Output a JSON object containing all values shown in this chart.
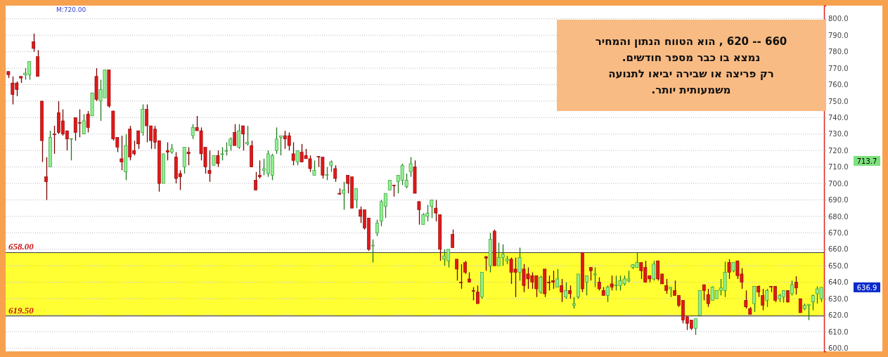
{
  "chart_data": {
    "type": "candlestick",
    "categories": [
      null,
      null,
      null,
      null,
      null,
      null,
      null,
      null,
      null,
      null,
      null,
      null,
      null,
      null,
      null,
      null,
      null,
      null,
      null,
      null,
      null,
      null,
      null,
      null,
      null,
      null,
      null,
      null,
      null,
      null,
      null,
      null,
      null,
      null,
      null,
      null,
      null,
      null,
      null,
      null,
      null,
      null,
      null,
      null,
      null,
      null,
      null,
      null,
      null,
      null,
      null,
      null,
      null,
      null,
      null,
      null,
      null,
      null,
      null,
      null,
      null,
      null,
      null,
      null,
      null,
      null,
      null,
      null,
      null,
      null,
      null,
      null,
      null,
      null,
      null,
      null,
      null,
      null,
      null,
      null,
      null,
      null,
      null,
      null,
      null,
      null,
      null,
      null,
      null,
      null,
      null,
      null,
      null,
      null,
      null,
      null,
      null,
      null,
      null,
      null,
      null,
      null,
      null,
      null,
      null,
      null,
      null,
      null,
      null,
      null,
      null,
      null,
      null,
      null,
      null,
      null,
      null,
      null,
      null,
      null,
      null,
      null,
      null,
      null,
      null,
      null,
      null,
      null,
      null,
      null,
      null,
      null,
      null,
      null,
      null,
      null,
      null,
      null,
      null,
      null,
      null,
      null,
      null,
      null,
      null,
      null,
      null,
      null,
      null,
      null,
      null,
      null,
      null,
      null,
      null,
      null,
      null,
      null,
      null,
      null,
      null,
      null,
      null,
      null,
      null,
      null,
      null,
      null,
      null,
      null,
      null,
      null,
      null,
      null,
      null,
      null,
      null,
      null,
      null,
      null,
      null,
      null,
      null,
      null,
      null,
      null,
      null,
      null,
      null,
      null,
      null,
      null,
      null,
      null,
      null
    ],
    "ohlc": [
      [
        768,
        768,
        764,
        766
      ],
      [
        761,
        765,
        748,
        754
      ],
      [
        761,
        762,
        753,
        757
      ],
      [
        765,
        765,
        761,
        764
      ],
      [
        766,
        770,
        763,
        767
      ],
      [
        766,
        774,
        763,
        774
      ],
      [
        786,
        791,
        780,
        782
      ],
      [
        777,
        781,
        765,
        765
      ],
      [
        750,
        750,
        713,
        726
      ],
      [
        704,
        716,
        690,
        701
      ],
      [
        710,
        732,
        710,
        728
      ],
      [
        730,
        735,
        718,
        729.8
      ],
      [
        743,
        750,
        730,
        731
      ],
      [
        738,
        745,
        729,
        730
      ],
      [
        732,
        732,
        720,
        727
      ],
      [
        726.9,
        727.3,
        714,
        727.3
      ],
      [
        740,
        740,
        726,
        731
      ],
      [
        737,
        745,
        728,
        736.8
      ],
      [
        730,
        742,
        730,
        738
      ],
      [
        742,
        744,
        731,
        734
      ],
      [
        741,
        755,
        741,
        755
      ],
      [
        765,
        770,
        750,
        751
      ],
      [
        750,
        763,
        738,
        757
      ],
      [
        752,
        769,
        752,
        769
      ],
      [
        769,
        769,
        746,
        747
      ],
      [
        744,
        744,
        726,
        727
      ],
      [
        728,
        728,
        719,
        722
      ],
      [
        715,
        729,
        708,
        713
      ],
      [
        707,
        730,
        702,
        723
      ],
      [
        733,
        735,
        714,
        716
      ],
      [
        720,
        726,
        717,
        718
      ],
      [
        732,
        732,
        721,
        724
      ],
      [
        731,
        748,
        729,
        745
      ],
      [
        745,
        748,
        725,
        735
      ],
      [
        735,
        735,
        721,
        726
      ],
      [
        733,
        735,
        721,
        725
      ],
      [
        726,
        726,
        695,
        700
      ],
      [
        700,
        718,
        700,
        718
      ],
      [
        720,
        725,
        714,
        719
      ],
      [
        719,
        724,
        718,
        721
      ],
      [
        716,
        719,
        700,
        703
      ],
      [
        706,
        708,
        696,
        704
      ],
      [
        710,
        722,
        706,
        722
      ],
      [
        719,
        722,
        711,
        718
      ],
      [
        729,
        736,
        727,
        734
      ],
      [
        734,
        741,
        732,
        732
      ],
      [
        732,
        734,
        714,
        718
      ],
      [
        722,
        722,
        706,
        710
      ],
      [
        708,
        720,
        701,
        706
      ],
      [
        711,
        717,
        711,
        717
      ],
      [
        717,
        720,
        710,
        712
      ],
      [
        718,
        722,
        714,
        718
      ],
      [
        720,
        725,
        717,
        720
      ],
      [
        723,
        728,
        720,
        727
      ],
      [
        731,
        736,
        723,
        723
      ],
      [
        722,
        736,
        721,
        732
      ],
      [
        735,
        735,
        720,
        730
      ],
      [
        724,
        735,
        723,
        725
      ],
      [
        723,
        726,
        710,
        710
      ],
      [
        702,
        707,
        696,
        696
      ],
      [
        705,
        714,
        703,
        704
      ],
      [
        708,
        715,
        705,
        709
      ],
      [
        706,
        720,
        704,
        718
      ],
      [
        705,
        718,
        702,
        717
      ],
      [
        720,
        734,
        718,
        727
      ],
      [
        728,
        729,
        717,
        729
      ],
      [
        729,
        732,
        721,
        727
      ],
      [
        729,
        731,
        720,
        723
      ],
      [
        718,
        725,
        711,
        714
      ],
      [
        713,
        720,
        711,
        720
      ],
      [
        719,
        724,
        713,
        713
      ],
      [
        717,
        721,
        715,
        715
      ],
      [
        715,
        717,
        707,
        709
      ],
      [
        705,
        714,
        705,
        708
      ],
      [
        716.4,
        716.4,
        710,
        716
      ],
      [
        716,
        716,
        703,
        705
      ],
      [
        705,
        710,
        702,
        705.3
      ],
      [
        711,
        714,
        707,
        713
      ],
      [
        709,
        711,
        701,
        703
      ],
      [
        694,
        697,
        693,
        693.6
      ],
      [
        694,
        701,
        684,
        696
      ],
      [
        705,
        705,
        694,
        700
      ],
      [
        704,
        704,
        685,
        685
      ],
      [
        690,
        697,
        685,
        697
      ],
      [
        684,
        686,
        676,
        680
      ],
      [
        684,
        684,
        672,
        673
      ],
      [
        679,
        679,
        659,
        660
      ],
      [
        662,
        666,
        652,
        662.5
      ],
      [
        670,
        678,
        668,
        676
      ],
      [
        677,
        690,
        674,
        689
      ],
      [
        686,
        694,
        679,
        694
      ],
      [
        696,
        702,
        696,
        702
      ],
      [
        699,
        699,
        692,
        698.8
      ],
      [
        701,
        705,
        694,
        705
      ],
      [
        702,
        712,
        699,
        711
      ],
      [
        698,
        706,
        697,
        702
      ],
      [
        707,
        716,
        704,
        712
      ],
      [
        710,
        714,
        694,
        694
      ],
      [
        689,
        689,
        675,
        684
      ],
      [
        675,
        682,
        675,
        681
      ],
      [
        680,
        687,
        677,
        682
      ],
      [
        686,
        690,
        679,
        690
      ],
      [
        685,
        690,
        677,
        682
      ],
      [
        681,
        681,
        653,
        660
      ],
      [
        654,
        660,
        650,
        656
      ],
      [
        653,
        660,
        649,
        660
      ],
      [
        669,
        672,
        661,
        661
      ],
      [
        654,
        654,
        641,
        648
      ],
      [
        640,
        651,
        636,
        639.8
      ],
      [
        652,
        653,
        645,
        646
      ],
      [
        642,
        646,
        640,
        640
      ],
      [
        635,
        637,
        629,
        634.6
      ],
      [
        634,
        638,
        627,
        627
      ],
      [
        631,
        646,
        630,
        646
      ],
      [
        655.5,
        656,
        647,
        654.5
      ],
      [
        650,
        670,
        646,
        666
      ],
      [
        671,
        672,
        650,
        650
      ],
      [
        650,
        664,
        650,
        655
      ],
      [
        655,
        663,
        650,
        657
      ],
      [
        653,
        656,
        651,
        654
      ],
      [
        654,
        655,
        639,
        646
      ],
      [
        648,
        655,
        631,
        646
      ],
      [
        646,
        661,
        641,
        655
      ],
      [
        648,
        651,
        634,
        638
      ],
      [
        645,
        649,
        636,
        642
      ],
      [
        644,
        646,
        636,
        640
      ],
      [
        644,
        644,
        631,
        636
      ],
      [
        634,
        644,
        633,
        643
      ],
      [
        648,
        648,
        631,
        633
      ],
      [
        640,
        644,
        635,
        639.8
      ],
      [
        641,
        647,
        636,
        640
      ],
      [
        637,
        648,
        637,
        642
      ],
      [
        638,
        642,
        628,
        634
      ],
      [
        631,
        640,
        630,
        635
      ],
      [
        635,
        638,
        630,
        633
      ],
      [
        626,
        631,
        624,
        627
      ],
      [
        631,
        645,
        630,
        645
      ],
      [
        658,
        658,
        634,
        636
      ],
      [
        640,
        644,
        632,
        644
      ],
      [
        649,
        649,
        641,
        647
      ],
      [
        644.5,
        649,
        637,
        645
      ],
      [
        640,
        643,
        635,
        636
      ],
      [
        635,
        637,
        632,
        632
      ],
      [
        632,
        638,
        628,
        637
      ],
      [
        639,
        644,
        635,
        637
      ],
      [
        638,
        644,
        635,
        638.4
      ],
      [
        638,
        644,
        635,
        641
      ],
      [
        639,
        644,
        638,
        642
      ],
      [
        641,
        647,
        640,
        642
      ],
      [
        649,
        651,
        648,
        650.6
      ],
      [
        649,
        658,
        649,
        652
      ],
      [
        652,
        652,
        642,
        647
      ],
      [
        649,
        653,
        640,
        640
      ],
      [
        644,
        644,
        640,
        642
      ],
      [
        642,
        653,
        641,
        651
      ],
      [
        653,
        653,
        641,
        642
      ],
      [
        645,
        645,
        639,
        639
      ],
      [
        638,
        642,
        633,
        635
      ],
      [
        636,
        637,
        631,
        637
      ],
      [
        635,
        641,
        632,
        632
      ],
      [
        632,
        632,
        625,
        626
      ],
      [
        629,
        629,
        615,
        617
      ],
      [
        619,
        619,
        611,
        615
      ],
      [
        617,
        617,
        611,
        612
      ],
      [
        612,
        618,
        608,
        618
      ],
      [
        620,
        635,
        620,
        635
      ],
      [
        638.5,
        638.5,
        629,
        635
      ],
      [
        632.5,
        636,
        625,
        627
      ],
      [
        629,
        637.5,
        629,
        637
      ],
      [
        630,
        635,
        630,
        635
      ],
      [
        635,
        642,
        632,
        636.5
      ],
      [
        635,
        652.5,
        631,
        646
      ],
      [
        652,
        654,
        642,
        646
      ],
      [
        647,
        652,
        646,
        652
      ],
      [
        653,
        653,
        642,
        644
      ],
      [
        645,
        648.5,
        636,
        640
      ],
      [
        629,
        635,
        624,
        625
      ],
      [
        624,
        625,
        620.5,
        620.5
      ],
      [
        627,
        637.5,
        622,
        637.5
      ],
      [
        637.5,
        638,
        631,
        634
      ],
      [
        632,
        636,
        623,
        626
      ],
      [
        629,
        636,
        625,
        635
      ],
      [
        637.5,
        637.5,
        634,
        637.4
      ],
      [
        637.5,
        637.5,
        628,
        629
      ],
      [
        630,
        633,
        628,
        632
      ],
      [
        631,
        635,
        627.6,
        635
      ],
      [
        635,
        635,
        627.6,
        628
      ],
      [
        633,
        641,
        632,
        638.5
      ],
      [
        640,
        643.6,
        632.5,
        636.5
      ],
      [
        630,
        630,
        621.5,
        621.5
      ],
      [
        624,
        627,
        623,
        626
      ],
      [
        626,
        626.6,
        617,
        626.6
      ],
      [
        628,
        632.5,
        623,
        632
      ],
      [
        633,
        637.5,
        627,
        636
      ],
      [
        630,
        636.9,
        628,
        636.9
      ]
    ],
    "ylim": [
      598,
      808
    ],
    "yticks": [
      {
        "value": 600,
        "label": "600.0"
      },
      {
        "value": 610,
        "label": "610.0"
      },
      {
        "value": 620,
        "label": "620.0"
      },
      {
        "value": 630,
        "label": "630.0"
      },
      {
        "value": 640,
        "label": "640.0"
      },
      {
        "value": 650,
        "label": "650.0"
      },
      {
        "value": 660,
        "label": "660.0"
      },
      {
        "value": 670,
        "label": "670.0"
      },
      {
        "value": 680,
        "label": "680.0"
      },
      {
        "value": 690,
        "label": "690.0"
      },
      {
        "value": 700,
        "label": "700.0"
      },
      {
        "value": 710,
        "label": "710.0"
      },
      {
        "value": 720,
        "label": "720.0"
      },
      {
        "value": 730,
        "label": "730.0"
      },
      {
        "value": 740,
        "label": "740.0"
      },
      {
        "value": 750,
        "label": "750.0"
      },
      {
        "value": 760,
        "label": "760.0"
      },
      {
        "value": 770,
        "label": "770.0"
      },
      {
        "value": 780,
        "label": "780.0"
      },
      {
        "value": 790,
        "label": "790.0"
      },
      {
        "value": 800,
        "label": "800.0"
      }
    ],
    "grid": "y",
    "tick_labels": "y",
    "ref_lines": [
      {
        "axis": "y",
        "value": 658,
        "label": "658.00"
      },
      {
        "axis": "y",
        "value": 619.5,
        "label": "619.50"
      }
    ],
    "bands": [
      {
        "axis": "y",
        "from": 619.5,
        "to": 658,
        "color": "#ffff33"
      }
    ],
    "annotations": [
      "M:720.00",
      "660 -- 620 ,  הוא הטווח הנתון  והמחיר",
      "נמצא בו  כבר מספר חודשים.",
      "רק  פריצה או שבירה יביאו לתנועה",
      "משמעותית יותר.",
      "713.7",
      "636.9"
    ]
  }
}
